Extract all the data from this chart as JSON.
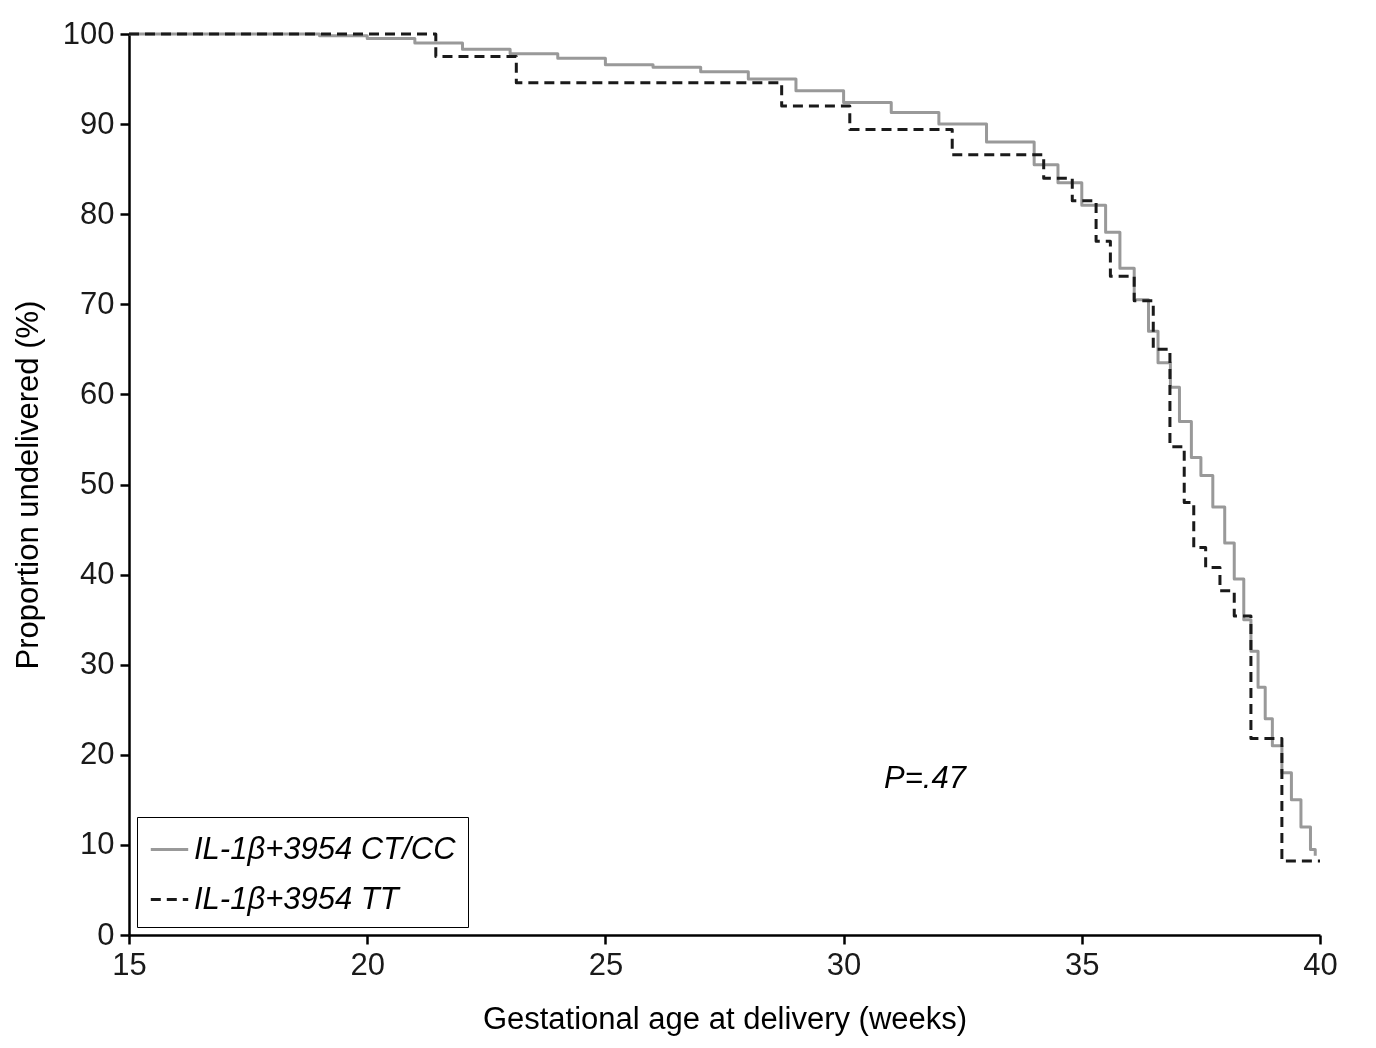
{
  "chart_data": {
    "type": "step",
    "xlabel": "Gestational age at delivery (weeks)",
    "ylabel": "Proportion undelivered (%)",
    "xlim": [
      15,
      40
    ],
    "xticks": [
      15,
      20,
      25,
      30,
      35,
      40
    ],
    "ylim": [
      0,
      100
    ],
    "yticks": [
      0,
      10,
      20,
      30,
      40,
      50,
      60,
      70,
      80,
      90,
      100
    ],
    "grid": false,
    "legend": "bottom left",
    "annotations": [
      "P=.47"
    ],
    "series": [
      {
        "name": "IL-1β+3954 CT/CC",
        "color": "#999999",
        "line_style": "solid",
        "x": [
          15,
          18,
          19,
          20,
          21,
          22,
          23,
          24,
          25,
          26,
          27,
          28,
          29,
          30,
          31,
          32,
          33,
          34,
          34.5,
          35,
          35.5,
          35.8,
          36.1,
          36.4,
          36.6,
          36.86,
          37.05,
          37.3,
          37.5,
          37.75,
          38.0,
          38.2,
          38.4,
          38.55,
          38.7,
          38.85,
          39.0,
          39.2,
          39.4,
          39.6,
          39.8,
          39.9
        ],
        "values": [
          100,
          100,
          99.8,
          99.5,
          99,
          98.3,
          97.8,
          97.3,
          96.6,
          96.3,
          95.8,
          95,
          93.7,
          92.4,
          91.3,
          90,
          88,
          85.5,
          83.5,
          81,
          78,
          74,
          70.5,
          67,
          63.5,
          60.8,
          57,
          53,
          51,
          47.5,
          43.5,
          39.5,
          35,
          31.5,
          27.5,
          24,
          21,
          18,
          15,
          12,
          9.5,
          8.8
        ]
      },
      {
        "name": "IL-1β+3954 TT",
        "color": "#1a1a1a",
        "line_style": "dashed",
        "x": [
          15,
          21.44,
          23.13,
          28.7,
          30.13,
          32.28,
          34.2,
          34.8,
          35.3,
          35.6,
          36.1,
          36.5,
          36.85,
          37.15,
          37.35,
          37.6,
          37.9,
          38.2,
          38.55,
          39.2,
          40
        ],
        "values": [
          100,
          97.5,
          94.6,
          92,
          89.4,
          86.6,
          84,
          81.5,
          77,
          73.1,
          70.4,
          65,
          54.2,
          48,
          43,
          40.8,
          38.2,
          35.4,
          21.8,
          8.2,
          8.2
        ]
      }
    ]
  }
}
